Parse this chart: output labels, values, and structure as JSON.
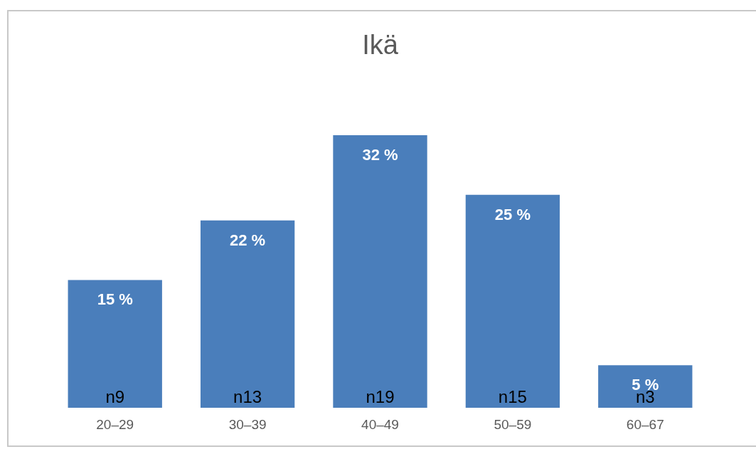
{
  "chart_data": {
    "type": "bar",
    "title": "Ikä",
    "categories": [
      "20–29",
      "30–39",
      "40–49",
      "50–59",
      "60–67"
    ],
    "values": [
      15,
      22,
      32,
      25,
      5
    ],
    "value_labels": [
      "15 %",
      "22 %",
      "32 %",
      "25 %",
      "5 %"
    ],
    "color": "#4a7ebb",
    "annotations": [
      {
        "text": "n9",
        "x": "20–29",
        "y": 0
      },
      {
        "text": "n13",
        "x": "30–39",
        "y": 0
      },
      {
        "text": "n19",
        "x": "40–49",
        "y": 0
      },
      {
        "text": "n15",
        "x": "50–59",
        "y": 0
      },
      {
        "text": "n3",
        "x": "60–67",
        "y": 0
      }
    ],
    "grid": false,
    "tick_labels": "x"
  }
}
